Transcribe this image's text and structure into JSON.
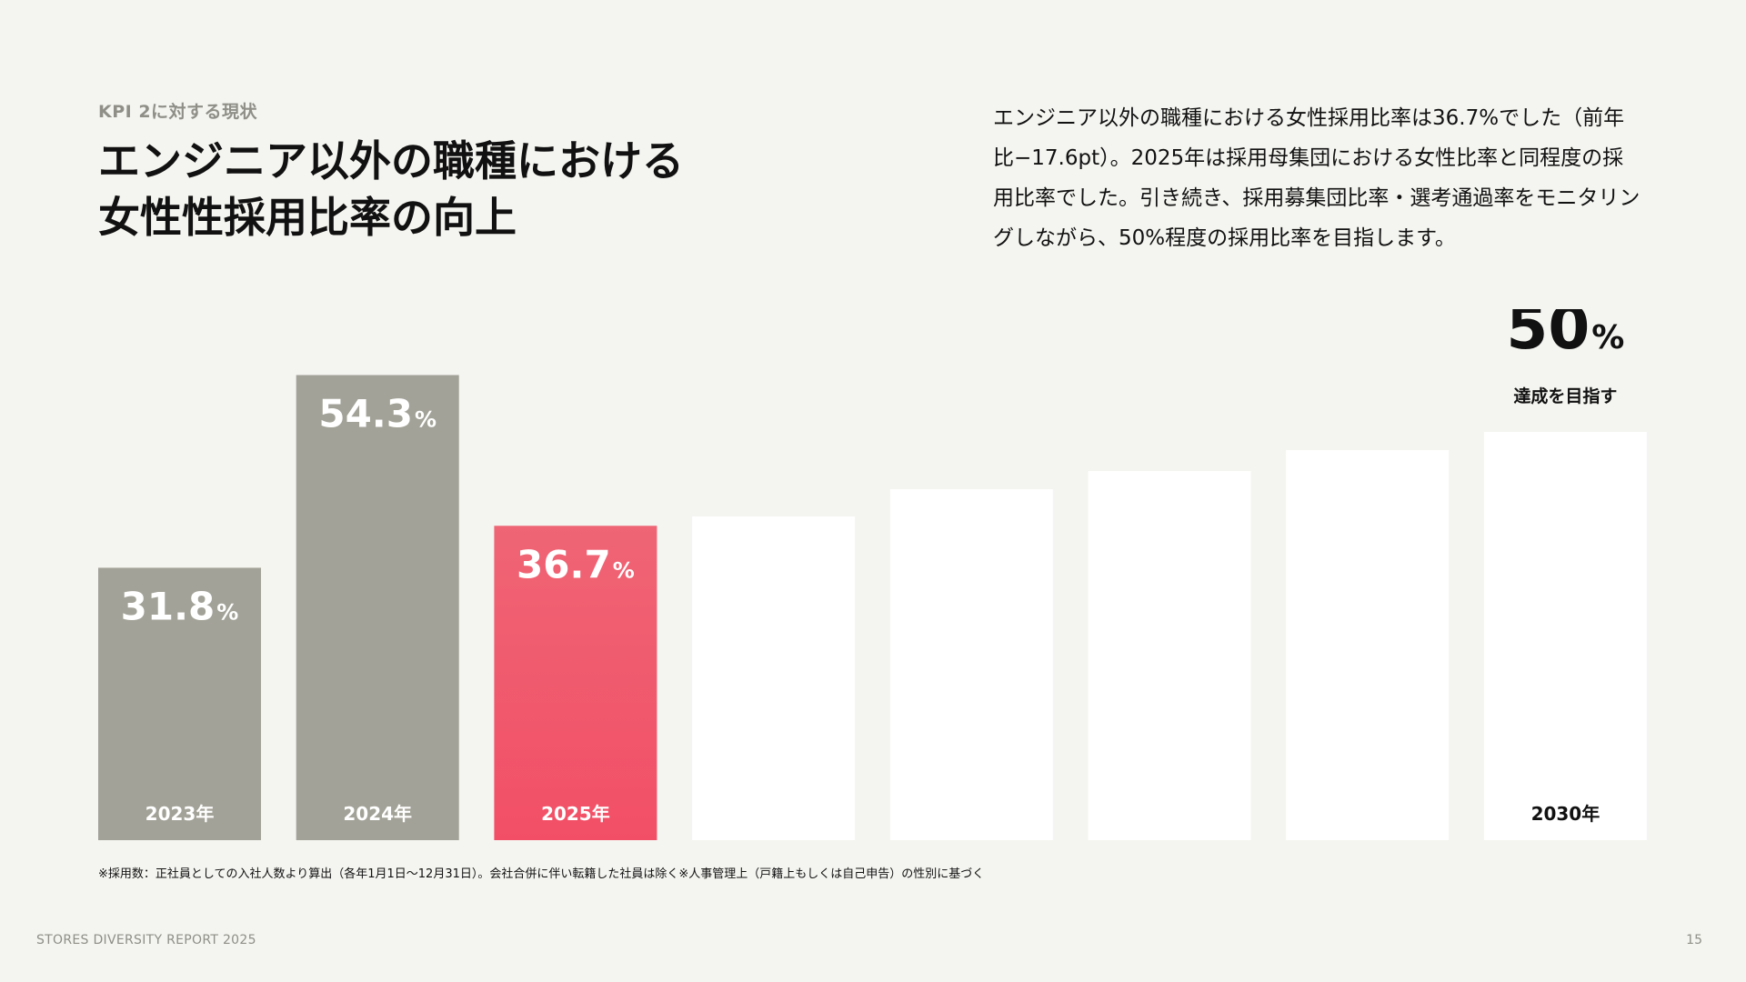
{
  "header": {
    "eyebrow": "KPI 2に対する現状",
    "title_line1": "エンジニア以外の職種における",
    "title_line2": "女性性採用比率の向上"
  },
  "description": {
    "lines": [
      "エンジニア以外の職種における女性採用比率は36.7%でした（前年",
      "比−17.6pt）。2025年は採用母集団における女性比率と同程度の採",
      "用比率でした。引き続き、採用募集団比率・選考通過率をモニタリン",
      "グしながら、50%程度の採用比率を目指します。"
    ]
  },
  "chart_data": {
    "type": "bar",
    "categories": [
      "2023年",
      "2024年",
      "2025年",
      "",
      "",
      "",
      "",
      "2030年"
    ],
    "values": [
      31.8,
      54.3,
      36.7,
      null,
      null,
      null,
      null,
      50
    ],
    "value_labels": [
      "31.8",
      "54.3",
      "36.7",
      "",
      "",
      "",
      "",
      "50"
    ],
    "unit": "%",
    "ylim": [
      0,
      60
    ],
    "target": {
      "value": 50,
      "label": "50",
      "unit": "%",
      "caption": "達成を目指す"
    },
    "colors": {
      "actual": "#a3a298",
      "current_top": "#ef6575",
      "current_bottom": "#f24f66",
      "future": "#ffffff",
      "label_on_bar": "#ffffff",
      "label_on_future": "#111111"
    }
  },
  "footnote": "※採用数：正社員としての入社人数より算出（各年1月1日〜12月31日）。会社合併に伴い転籍した社員は除く※人事管理上（戸籍上もしくは自己申告）の性別に基づく",
  "footer": {
    "brand": "STORES DIVERSITY REPORT 2025",
    "page": "15"
  }
}
